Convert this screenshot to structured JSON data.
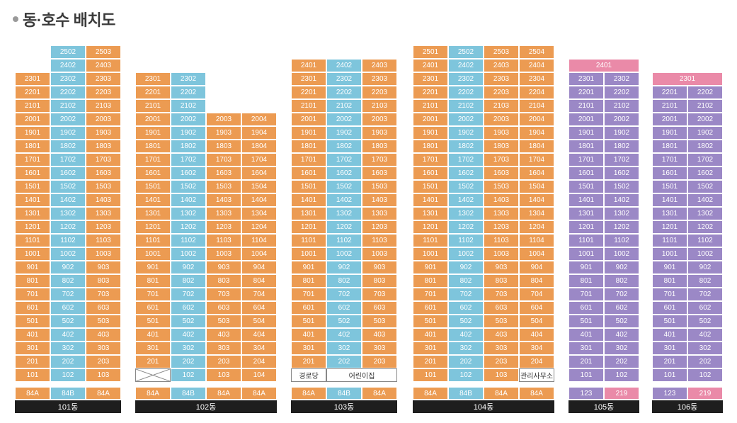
{
  "title": "동·호수 배치도",
  "buildings": [
    {
      "name": "101동",
      "columns": [
        {
          "type": "84A",
          "color": "orange",
          "max": 23,
          "min": 1
        },
        {
          "type": "84B",
          "color": "blue",
          "max": 25,
          "min": 1
        },
        {
          "type": "84A",
          "color": "orange",
          "max": 25,
          "min": 1
        }
      ],
      "specials": []
    },
    {
      "name": "102동",
      "columns": [
        {
          "type": "84A",
          "color": "orange",
          "max": 23,
          "min": 1
        },
        {
          "type": "84B",
          "color": "blue",
          "max": 23,
          "min": 1
        },
        {
          "type": "84A",
          "color": "orange",
          "max": 20,
          "min": 1
        },
        {
          "type": "84A",
          "color": "orange",
          "max": 20,
          "min": 1
        }
      ],
      "specials": [
        {
          "floor": 1,
          "start": 0,
          "span": 1,
          "text": "",
          "cross": true
        }
      ]
    },
    {
      "name": "103동",
      "columns": [
        {
          "type": "84A",
          "color": "orange",
          "max": 24,
          "min": 1
        },
        {
          "type": "84B",
          "color": "blue",
          "max": 24,
          "min": 1
        },
        {
          "type": "84A",
          "color": "orange",
          "max": 24,
          "min": 1
        }
      ],
      "specials": [
        {
          "floor": 1,
          "start": 0,
          "span": 1,
          "text": "경로당"
        },
        {
          "floor": 1,
          "start": 1,
          "span": 2,
          "text": "어린이집"
        }
      ]
    },
    {
      "name": "104동",
      "columns": [
        {
          "type": "84A",
          "color": "orange",
          "max": 25,
          "min": 1
        },
        {
          "type": "84B",
          "color": "blue",
          "max": 25,
          "min": 1
        },
        {
          "type": "84A",
          "color": "orange",
          "max": 25,
          "min": 1
        },
        {
          "type": "84A",
          "color": "orange",
          "max": 25,
          "min": 1
        }
      ],
      "specials": [
        {
          "floor": 1,
          "start": 3,
          "span": 1,
          "text": "관리사무소"
        }
      ]
    },
    {
      "name": "105동",
      "columns": [
        {
          "type": "123",
          "color": "purple",
          "max": 23,
          "min": 1
        },
        {
          "type": "219",
          "color": "pink",
          "max": 23,
          "min": 1
        }
      ],
      "specials": [
        {
          "floor": 24,
          "start": 0,
          "span": 2,
          "text": "2401",
          "pink": true
        }
      ]
    },
    {
      "name": "106동",
      "columns": [
        {
          "type": "123",
          "color": "purple",
          "max": 22,
          "min": 1
        },
        {
          "type": "219",
          "color": "pink",
          "max": 22,
          "min": 1
        }
      ],
      "specials": [
        {
          "floor": 23,
          "start": 0,
          "span": 2,
          "text": "2301",
          "pink": true
        }
      ]
    }
  ],
  "colors": {
    "orange": "#ec9b52",
    "blue": "#7ec5dc",
    "purple": "#9b88c6",
    "pink": "#ea8aa8",
    "label": "#1e1e1e"
  }
}
